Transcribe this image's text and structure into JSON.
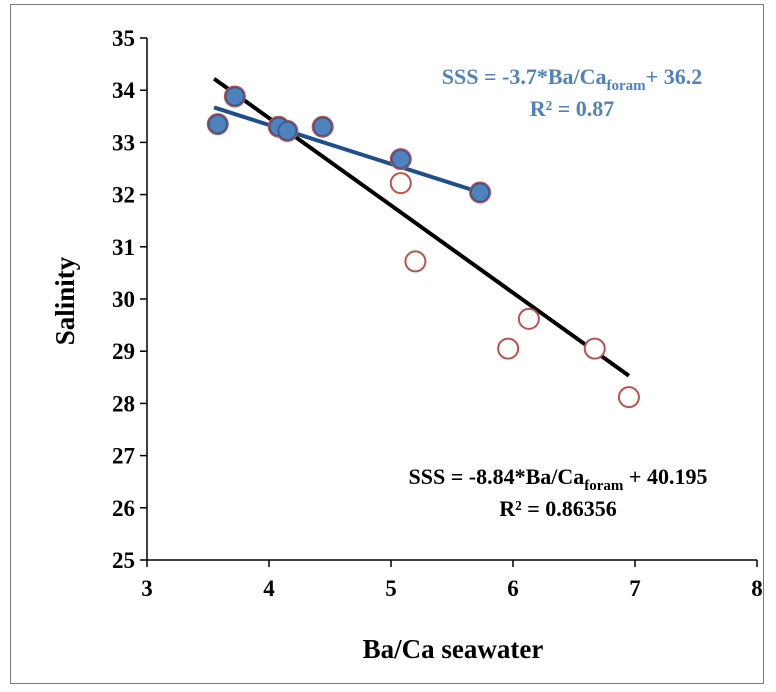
{
  "chart_data": {
    "type": "scatter",
    "xlabel": "Ba/Ca seawater",
    "ylabel": "Salinity",
    "xlim": [
      3,
      8
    ],
    "ylim": [
      25,
      35
    ],
    "xticks": [
      "3",
      "4",
      "5",
      "6",
      "7",
      "8"
    ],
    "yticks": [
      "25",
      "26",
      "27",
      "28",
      "29",
      "30",
      "31",
      "32",
      "33",
      "34",
      "35"
    ],
    "grid": false,
    "series": [
      {
        "marker": "open-circle",
        "color": "#c0504d",
        "points": [
          [
            3.58,
            33.35
          ],
          [
            3.72,
            33.88
          ],
          [
            4.08,
            33.3
          ],
          [
            4.15,
            33.22
          ],
          [
            4.44,
            33.3
          ],
          [
            5.08,
            32.68
          ],
          [
            5.73,
            32.04
          ],
          [
            5.08,
            32.22
          ],
          [
            5.2,
            30.72
          ],
          [
            5.96,
            29.05
          ],
          [
            6.13,
            29.62
          ],
          [
            6.67,
            29.05
          ],
          [
            6.95,
            28.12
          ]
        ]
      },
      {
        "marker": "filled-circle",
        "color": "#4f81bd",
        "points": [
          [
            3.58,
            33.35
          ],
          [
            3.72,
            33.88
          ],
          [
            4.08,
            33.3
          ],
          [
            4.15,
            33.22
          ],
          [
            4.44,
            33.3
          ],
          [
            5.08,
            32.68
          ],
          [
            5.73,
            32.04
          ]
        ]
      }
    ],
    "trendlines": [
      {
        "color": "#1f4e8c",
        "x": [
          3.55,
          5.72
        ],
        "y": [
          33.67,
          32.05
        ],
        "equation_parts": [
          "SSS = -3.7*Ba/Ca",
          "foram",
          "+ 36.2"
        ],
        "r2_text": "R² = 0.87",
        "label_color": "#4f81bd"
      },
      {
        "color": "#000000",
        "x": [
          3.55,
          6.95
        ],
        "y": [
          34.22,
          28.53
        ],
        "equation_parts": [
          "SSS = -8.84*Ba/Ca",
          "foram",
          " + 40.195"
        ],
        "r2_text": "R² = 0.86356",
        "label_color": "#000000"
      }
    ]
  }
}
